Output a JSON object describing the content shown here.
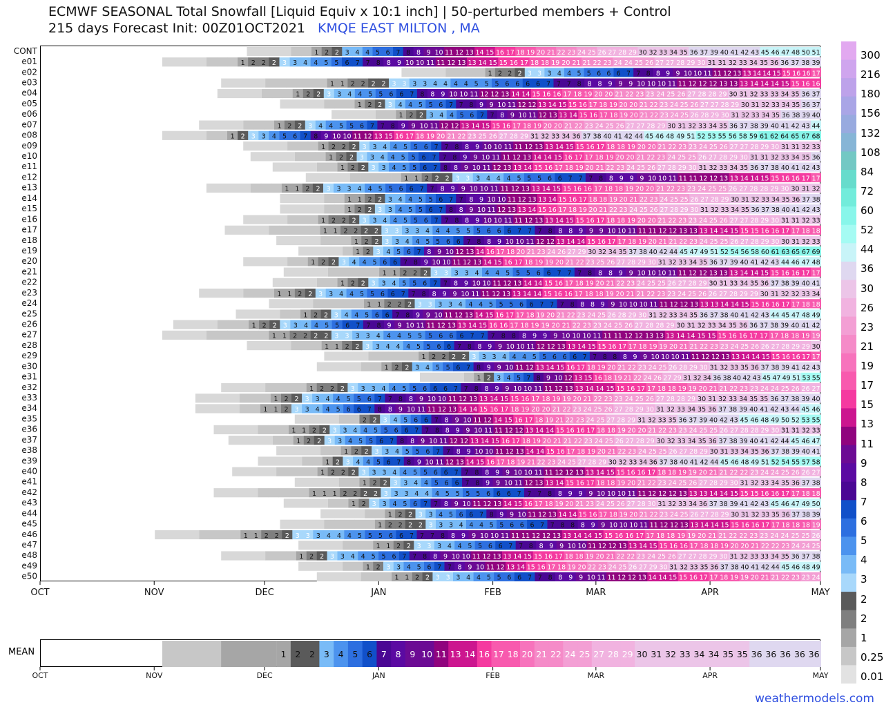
{
  "title_line1": "ECMWF SEASONAL Total Snowfall [Liquid Equiv x 10:1 inch] | 50-perturbed members + Control",
  "title_line2": "215 days Forecast Init: 00Z01OCT2021",
  "location": "KMQE EAST MILTON    , MA",
  "footer": "weathermodels.com",
  "chart_data": {
    "type": "heatmap",
    "x_tick_labels": [
      "OCT",
      "NOV",
      "DEC",
      "JAN",
      "FEB",
      "MAR",
      "APR",
      "MAY"
    ],
    "x_tick_days": [
      0,
      31,
      61,
      92,
      123,
      151,
      182,
      212
    ],
    "total_days": 212,
    "members": [
      "CONT",
      "e01",
      "e02",
      "e03",
      "e04",
      "e05",
      "e06",
      "e07",
      "e08",
      "e09",
      "e10",
      "e11",
      "e12",
      "e13",
      "e14",
      "e15",
      "e16",
      "e17",
      "e18",
      "e19",
      "e20",
      "e21",
      "e22",
      "e23",
      "e24",
      "e25",
      "e26",
      "e27",
      "e28",
      "e29",
      "e30",
      "e31",
      "e32",
      "e33",
      "e34",
      "e35",
      "e36",
      "e37",
      "e38",
      "e39",
      "e40",
      "e41",
      "e42",
      "e43",
      "e44",
      "e45",
      "e46",
      "e47",
      "e48",
      "e49",
      "e50"
    ],
    "member_start_day": [
      56,
      33,
      98,
      49,
      48,
      65,
      79,
      43,
      33,
      55,
      57,
      63,
      72,
      45,
      65,
      65,
      55,
      50,
      64,
      70,
      55,
      66,
      63,
      43,
      62,
      53,
      36,
      33,
      56,
      77,
      75,
      103,
      49,
      42,
      42,
      69,
      47,
      51,
      64,
      59,
      52,
      69,
      47,
      66,
      76,
      65,
      31,
      70,
      49,
      70,
      75
    ],
    "member_final_total": [
      51,
      39,
      17,
      16,
      37,
      37,
      40,
      44,
      68,
      33,
      36,
      43,
      17,
      32,
      38,
      43,
      33,
      18,
      33,
      69,
      48,
      17,
      41,
      34,
      18,
      49,
      42,
      19,
      30,
      17,
      43,
      55,
      27,
      40,
      46,
      55,
      33,
      47,
      41,
      58,
      27,
      38,
      18,
      50,
      39,
      19,
      26,
      25,
      38,
      49,
      24
    ],
    "mean_labels": [
      "1",
      "2",
      "2",
      "3",
      "4",
      "5",
      "6",
      "7",
      "8",
      "9",
      "10",
      "11",
      "13",
      "14",
      "16",
      "17",
      "18",
      "20",
      "21",
      "22",
      "24",
      "25",
      "27",
      "28",
      "29",
      "30",
      "31",
      "32",
      "33",
      "34",
      "34",
      "35",
      "35",
      "36",
      "36",
      "36",
      "36",
      "36"
    ],
    "mean_label_start_day": 64,
    "colorbar_labels": [
      "300",
      "216",
      "180",
      "156",
      "132",
      "108",
      "84",
      "72",
      "60",
      "52",
      "44",
      "36",
      "30",
      "26",
      "23",
      "21",
      "19",
      "17",
      "15",
      "13",
      "11",
      "9",
      "8",
      "7",
      "6",
      "5",
      "4",
      "3",
      "2",
      "2",
      "1",
      "0.25",
      "0.01"
    ],
    "colorbar_colors": [
      "#e2a9f0",
      "#cfa5ee",
      "#bda2ea",
      "#a9a5e6",
      "#98aadf",
      "#86b5d6",
      "#73c8c4",
      "#66dccc",
      "#72ecdb",
      "#88f6ea",
      "#a5fbf3",
      "#c8f4f8",
      "#dfd8f0",
      "#ecc5e8",
      "#f1b3e0",
      "#f39fd4",
      "#f58bc8",
      "#f773bc",
      "#f85aae",
      "#f53aa0",
      "#cc168f",
      "#90047e",
      "#6c0b94",
      "#5b0aa2",
      "#4a0794",
      "#1150c9",
      "#2d6fe0",
      "#4c93ee",
      "#79bbf7",
      "#a8d8fb",
      "#5a5a5a",
      "#7f7f7f",
      "#a6a6a6",
      "#c7c7c7",
      "#e2e2e2"
    ]
  }
}
